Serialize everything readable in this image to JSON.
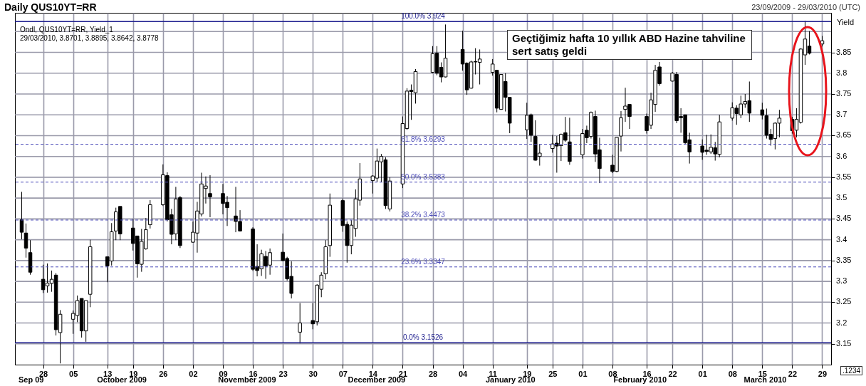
{
  "chart_data": {
    "type": "candlestick",
    "title": "Daily QUS10YT=RR",
    "subtitle": "23/09/2009 - 29/03/2010 (UTC)",
    "ylabel": "Yield",
    "annotations": [
      "Ondl, QUS10YT=RR, Yield_1",
      "29/03/2010, 3.8701, 3.8895, 3.8642, 3.8778",
      "Geçtiğimiz hafta 10 yıllık ABD Hazine tahviline sert satış geldi",
      ".1234"
    ],
    "x": [
      "2009-09-23",
      "2009-09-24",
      "2009-09-25",
      "2009-09-28",
      "2009-09-29",
      "2009-09-30",
      "2009-10-01",
      "2009-10-02",
      "2009-10-05",
      "2009-10-06",
      "2009-10-07",
      "2009-10-08",
      "2009-10-09",
      "2009-10-13",
      "2009-10-14",
      "2009-10-15",
      "2009-10-16",
      "2009-10-19",
      "2009-10-20",
      "2009-10-21",
      "2009-10-22",
      "2009-10-23",
      "2009-10-26",
      "2009-10-27",
      "2009-10-28",
      "2009-10-29",
      "2009-10-30",
      "2009-11-02",
      "2009-11-03",
      "2009-11-04",
      "2009-11-05",
      "2009-11-06",
      "2009-11-09",
      "2009-11-10",
      "2009-11-12",
      "2009-11-13",
      "2009-11-16",
      "2009-11-17",
      "2009-11-18",
      "2009-11-19",
      "2009-11-20",
      "2009-11-23",
      "2009-11-24",
      "2009-11-25",
      "2009-11-27",
      "2009-11-30",
      "2009-12-01",
      "2009-12-02",
      "2009-12-03",
      "2009-12-04",
      "2009-12-07",
      "2009-12-08",
      "2009-12-09",
      "2009-12-10",
      "2009-12-11",
      "2009-12-14",
      "2009-12-15",
      "2009-12-16",
      "2009-12-17",
      "2009-12-18",
      "2009-12-21",
      "2009-12-22",
      "2009-12-23",
      "2009-12-24",
      "2009-12-28",
      "2009-12-29",
      "2009-12-30",
      "2009-12-31",
      "2010-01-04",
      "2010-01-05",
      "2010-01-06",
      "2010-01-07",
      "2010-01-08",
      "2010-01-11",
      "2010-01-12",
      "2010-01-13",
      "2010-01-14",
      "2010-01-15",
      "2010-01-19",
      "2010-01-20",
      "2010-01-21",
      "2010-01-22",
      "2010-01-25",
      "2010-01-26",
      "2010-01-27",
      "2010-01-28",
      "2010-01-29",
      "2010-02-01",
      "2010-02-02",
      "2010-02-03",
      "2010-02-04",
      "2010-02-05",
      "2010-02-08",
      "2010-02-09",
      "2010-02-10",
      "2010-02-11",
      "2010-02-12",
      "2010-02-16",
      "2010-02-17",
      "2010-02-18",
      "2010-02-19",
      "2010-02-22",
      "2010-02-23",
      "2010-02-24",
      "2010-02-25",
      "2010-02-26",
      "2010-03-01",
      "2010-03-02",
      "2010-03-03",
      "2010-03-04",
      "2010-03-05",
      "2010-03-08",
      "2010-03-09",
      "2010-03-10",
      "2010-03-11",
      "2010-03-12",
      "2010-03-15",
      "2010-03-16",
      "2010-03-17",
      "2010-03-18",
      "2010-03-19",
      "2010-03-22",
      "2010-03-23",
      "2010-03-24",
      "2010-03-25",
      "2010-03-26",
      "2010-03-29"
    ],
    "ohlc": [
      [
        3.448,
        3.515,
        3.401,
        3.418
      ],
      [
        3.416,
        3.439,
        3.357,
        3.38
      ],
      [
        3.369,
        3.399,
        3.316,
        3.322
      ],
      [
        3.305,
        3.34,
        3.272,
        3.28
      ],
      [
        3.289,
        3.343,
        3.273,
        3.296
      ],
      [
        3.295,
        3.326,
        3.275,
        3.305
      ],
      [
        3.315,
        3.32,
        3.17,
        3.184
      ],
      [
        3.177,
        3.231,
        3.103,
        3.221
      ],
      [
        3.209,
        3.23,
        3.174,
        3.223
      ],
      [
        3.218,
        3.266,
        3.202,
        3.254
      ],
      [
        3.259,
        3.259,
        3.165,
        3.181
      ],
      [
        3.181,
        3.254,
        3.155,
        3.254
      ],
      [
        3.269,
        3.4,
        3.238,
        3.383
      ],
      [
        3.359,
        3.359,
        3.298,
        3.337
      ],
      [
        3.349,
        3.44,
        3.338,
        3.419
      ],
      [
        3.421,
        3.477,
        3.399,
        3.467
      ],
      [
        3.48,
        3.48,
        3.399,
        3.414
      ],
      [
        3.428,
        3.45,
        3.374,
        3.391
      ],
      [
        3.409,
        3.409,
        3.309,
        3.342
      ],
      [
        3.341,
        3.426,
        3.323,
        3.396
      ],
      [
        3.378,
        3.452,
        3.376,
        3.424
      ],
      [
        3.436,
        3.495,
        3.427,
        3.484
      ],
      [
        3.484,
        3.581,
        3.481,
        3.556
      ],
      [
        3.554,
        3.562,
        3.444,
        3.448
      ],
      [
        3.46,
        3.474,
        3.389,
        3.413
      ],
      [
        3.414,
        3.527,
        3.399,
        3.498
      ],
      [
        3.501,
        3.505,
        3.38,
        3.386
      ],
      [
        3.394,
        3.444,
        3.393,
        3.418
      ],
      [
        3.416,
        3.491,
        3.369,
        3.469
      ],
      [
        3.462,
        3.561,
        3.456,
        3.534
      ],
      [
        3.523,
        3.552,
        3.487,
        3.529
      ],
      [
        3.511,
        3.555,
        3.454,
        3.503
      ],
      [
        3.511,
        3.534,
        3.461,
        3.487
      ],
      [
        3.49,
        3.505,
        3.433,
        3.477
      ],
      [
        3.457,
        3.527,
        3.418,
        3.444
      ],
      [
        3.444,
        3.471,
        3.42,
        3.421
      ],
      [
        3.426,
        3.43,
        3.325,
        3.329
      ],
      [
        3.336,
        3.389,
        3.312,
        3.326
      ],
      [
        3.33,
        3.376,
        3.313,
        3.366
      ],
      [
        3.36,
        3.373,
        3.306,
        3.337
      ],
      [
        3.339,
        3.379,
        3.316,
        3.369
      ],
      [
        3.37,
        3.415,
        3.348,
        3.35
      ],
      [
        3.355,
        3.359,
        3.302,
        3.306
      ],
      [
        3.312,
        3.348,
        3.259,
        3.271
      ],
      [
        3.178,
        3.248,
        3.151,
        3.2
      ],
      [
        3.206,
        3.248,
        3.185,
        3.198
      ],
      [
        3.203,
        3.293,
        3.194,
        3.291
      ],
      [
        3.281,
        3.322,
        3.262,
        3.315
      ],
      [
        3.318,
        3.399,
        3.305,
        3.383
      ],
      [
        3.386,
        3.511,
        3.359,
        3.483
      ],
      [
        3.494,
        3.499,
        3.419,
        3.434
      ],
      [
        3.437,
        3.444,
        3.345,
        3.386
      ],
      [
        3.386,
        3.447,
        3.365,
        3.435
      ],
      [
        3.427,
        3.521,
        3.407,
        3.498
      ],
      [
        3.495,
        3.584,
        3.482,
        3.546
      ],
      [
        3.542,
        3.555,
        3.511,
        3.553
      ],
      [
        3.548,
        3.619,
        3.538,
        3.589
      ],
      [
        3.587,
        3.606,
        3.538,
        3.6
      ],
      [
        3.592,
        3.598,
        3.474,
        3.482
      ],
      [
        3.474,
        3.55,
        3.468,
        3.541
      ],
      [
        3.534,
        3.696,
        3.524,
        3.679
      ],
      [
        3.667,
        3.764,
        3.664,
        3.757
      ],
      [
        3.759,
        3.773,
        3.688,
        3.756
      ],
      [
        3.753,
        3.81,
        3.727,
        3.804
      ],
      [
        3.802,
        3.865,
        3.8,
        3.847
      ],
      [
        3.848,
        3.865,
        3.795,
        3.8
      ],
      [
        3.814,
        3.826,
        3.778,
        3.791
      ],
      [
        3.791,
        3.917,
        3.79,
        3.836
      ],
      [
        3.857,
        3.902,
        3.806,
        3.822
      ],
      [
        3.824,
        3.826,
        3.748,
        3.76
      ],
      [
        3.764,
        3.83,
        3.763,
        3.827
      ],
      [
        3.828,
        3.86,
        3.797,
        3.827
      ],
      [
        3.826,
        3.857,
        3.773,
        3.834
      ],
      [
        3.802,
        3.834,
        3.794,
        3.822
      ],
      [
        3.807,
        3.807,
        3.706,
        3.716
      ],
      [
        3.713,
        3.797,
        3.712,
        3.797
      ],
      [
        3.78,
        3.8,
        3.708,
        3.742
      ],
      [
        3.742,
        3.743,
        3.656,
        3.68
      ],
      [
        3.664,
        3.729,
        3.642,
        3.699
      ],
      [
        3.7,
        3.703,
        3.635,
        3.651
      ],
      [
        3.648,
        3.687,
        3.59,
        3.591
      ],
      [
        3.6,
        3.63,
        3.578,
        3.608
      ],
      [
        3.619,
        3.652,
        3.609,
        3.63
      ],
      [
        3.632,
        3.649,
        3.561,
        3.625
      ],
      [
        3.626,
        3.655,
        3.589,
        3.653
      ],
      [
        3.657,
        3.695,
        3.635,
        3.639
      ],
      [
        3.635,
        3.693,
        3.58,
        3.588
      ],
      [
        3.604,
        3.666,
        3.595,
        3.655
      ],
      [
        3.663,
        3.674,
        3.632,
        3.645
      ],
      [
        3.648,
        3.708,
        3.643,
        3.706
      ],
      [
        3.696,
        3.71,
        3.587,
        3.606
      ],
      [
        3.616,
        3.645,
        3.536,
        3.571
      ],
      [
        3.579,
        3.604,
        3.56,
        3.564
      ],
      [
        3.564,
        3.647,
        3.562,
        3.646
      ],
      [
        3.649,
        3.709,
        3.612,
        3.693
      ],
      [
        3.713,
        3.765,
        3.683,
        3.721
      ],
      [
        3.725,
        3.726,
        3.666,
        3.696
      ],
      [
        3.696,
        3.703,
        3.655,
        3.662
      ],
      [
        3.675,
        3.753,
        3.666,
        3.736
      ],
      [
        3.725,
        3.82,
        3.707,
        3.807
      ],
      [
        3.815,
        3.827,
        3.77,
        3.775
      ],
      [
        3.781,
        3.803,
        3.78,
        3.8
      ],
      [
        3.797,
        3.803,
        3.68,
        3.686
      ],
      [
        3.696,
        3.716,
        3.657,
        3.693
      ],
      [
        3.7,
        3.7,
        3.63,
        3.633
      ],
      [
        3.64,
        3.657,
        3.583,
        3.611
      ],
      [
        3.625,
        3.641,
        3.592,
        3.61
      ],
      [
        3.615,
        3.652,
        3.604,
        3.612
      ],
      [
        3.611,
        3.653,
        3.606,
        3.622
      ],
      [
        3.621,
        3.635,
        3.59,
        3.606
      ],
      [
        3.605,
        3.7,
        3.598,
        3.683
      ],
      [
        3.692,
        3.73,
        3.686,
        3.717
      ],
      [
        3.716,
        3.723,
        3.676,
        3.703
      ],
      [
        3.7,
        3.746,
        3.692,
        3.726
      ],
      [
        3.726,
        3.75,
        3.717,
        3.732
      ],
      [
        3.734,
        3.78,
        3.683,
        3.704
      ],
      [
        3.712,
        3.729,
        3.689,
        3.699
      ],
      [
        3.698,
        3.715,
        3.643,
        3.651
      ],
      [
        3.653,
        3.666,
        3.626,
        3.641
      ],
      [
        3.643,
        3.682,
        3.617,
        3.68
      ],
      [
        3.68,
        3.712,
        3.646,
        3.692
      ],
      [
        3.689,
        3.695,
        3.655,
        3.662
      ],
      [
        3.663,
        3.716,
        3.646,
        3.689
      ],
      [
        3.682,
        3.86,
        3.679,
        3.858
      ],
      [
        3.844,
        3.926,
        3.82,
        3.882
      ],
      [
        3.865,
        3.901,
        3.845,
        3.848
      ],
      [
        3.8701,
        3.8895,
        3.8642,
        3.8778
      ]
    ],
    "xlim": [
      "2009-09-22T06:00",
      "2010-03-30T06:00"
    ],
    "xticks": [
      {
        "value": "2009-09-28",
        "label": "28"
      },
      {
        "value": "2009-10-05",
        "label": "05"
      },
      {
        "value": "2009-10-13",
        "label": "13"
      },
      {
        "value": "2009-10-19",
        "label": "19"
      },
      {
        "value": "2009-10-26",
        "label": "26"
      },
      {
        "value": "2009-11-02",
        "label": "02"
      },
      {
        "value": "2009-11-09",
        "label": "09"
      },
      {
        "value": "2009-11-16",
        "label": "16"
      },
      {
        "value": "2009-11-23",
        "label": "23"
      },
      {
        "value": "2009-11-30",
        "label": "30"
      },
      {
        "value": "2009-12-07",
        "label": "07"
      },
      {
        "value": "2009-12-14",
        "label": "14"
      },
      {
        "value": "2009-12-21",
        "label": "21"
      },
      {
        "value": "2009-12-28",
        "label": "28"
      },
      {
        "value": "2010-01-04",
        "label": "04"
      },
      {
        "value": "2010-01-11",
        "label": "11"
      },
      {
        "value": "2010-01-19",
        "label": "19"
      },
      {
        "value": "2010-01-25",
        "label": "25"
      },
      {
        "value": "2010-02-01",
        "label": "01"
      },
      {
        "value": "2010-02-08",
        "label": "08"
      },
      {
        "value": "2010-02-16",
        "label": "16"
      },
      {
        "value": "2010-02-22",
        "label": "22"
      },
      {
        "value": "2010-03-01",
        "label": "01"
      },
      {
        "value": "2010-03-08",
        "label": "08"
      },
      {
        "value": "2010-03-15",
        "label": "15"
      },
      {
        "value": "2010-03-22",
        "label": "22"
      },
      {
        "value": "2010-03-29",
        "label": "29"
      }
    ],
    "x2lim": [
      "2009-09-22T06:00",
      "2010-03-30T06:00"
    ],
    "x2ticks": [
      {
        "value": "2009-09-26",
        "label": "Sep 09"
      },
      {
        "value": "2009-10-17",
        "label": "October 2009"
      },
      {
        "value": "2009-11-15",
        "label": "November 2009"
      },
      {
        "value": "2009-12-15",
        "label": "December 2009"
      },
      {
        "value": "2010-01-15",
        "label": "January 2010"
      },
      {
        "value": "2010-02-14",
        "label": "February 2010"
      },
      {
        "value": "2010-03-15",
        "label": "March 2010"
      }
    ],
    "ylim": [
      3.1,
      3.945
    ],
    "yticks": [
      3.15,
      3.2,
      3.25,
      3.3,
      3.35,
      3.4,
      3.45,
      3.5,
      3.55,
      3.6,
      3.65,
      3.7,
      3.75,
      3.8,
      3.85,
      {
        "value": 3.9,
        "label": null
      }
    ],
    "ref_lines": [
      {
        "axis": "y",
        "value": 3.924,
        "label": "100.0%  3.924",
        "color": "#1f1f8f",
        "line_style": "solid"
      },
      {
        "axis": "y",
        "value": 3.6293,
        "label": "61.8%  3.6293",
        "color": "#4b4bb8",
        "line_style": "dashed"
      },
      {
        "axis": "y",
        "value": 3.5383,
        "label": "50.0%  3.5383",
        "color": "#4b4bb8",
        "line_style": "dashed"
      },
      {
        "axis": "y",
        "value": 3.4473,
        "label": "38.2%  3.4473",
        "color": "#4b4bb8",
        "line_style": "dashed"
      },
      {
        "axis": "y",
        "value": 3.3347,
        "label": "23.6%  3.3347",
        "color": "#4b4bb8",
        "line_style": "dashed"
      },
      {
        "axis": "y",
        "value": 3.1526,
        "label": "0.0%  3.1526",
        "color": "#1f1f8f",
        "line_style": "solid"
      }
    ],
    "grid": true
  }
}
